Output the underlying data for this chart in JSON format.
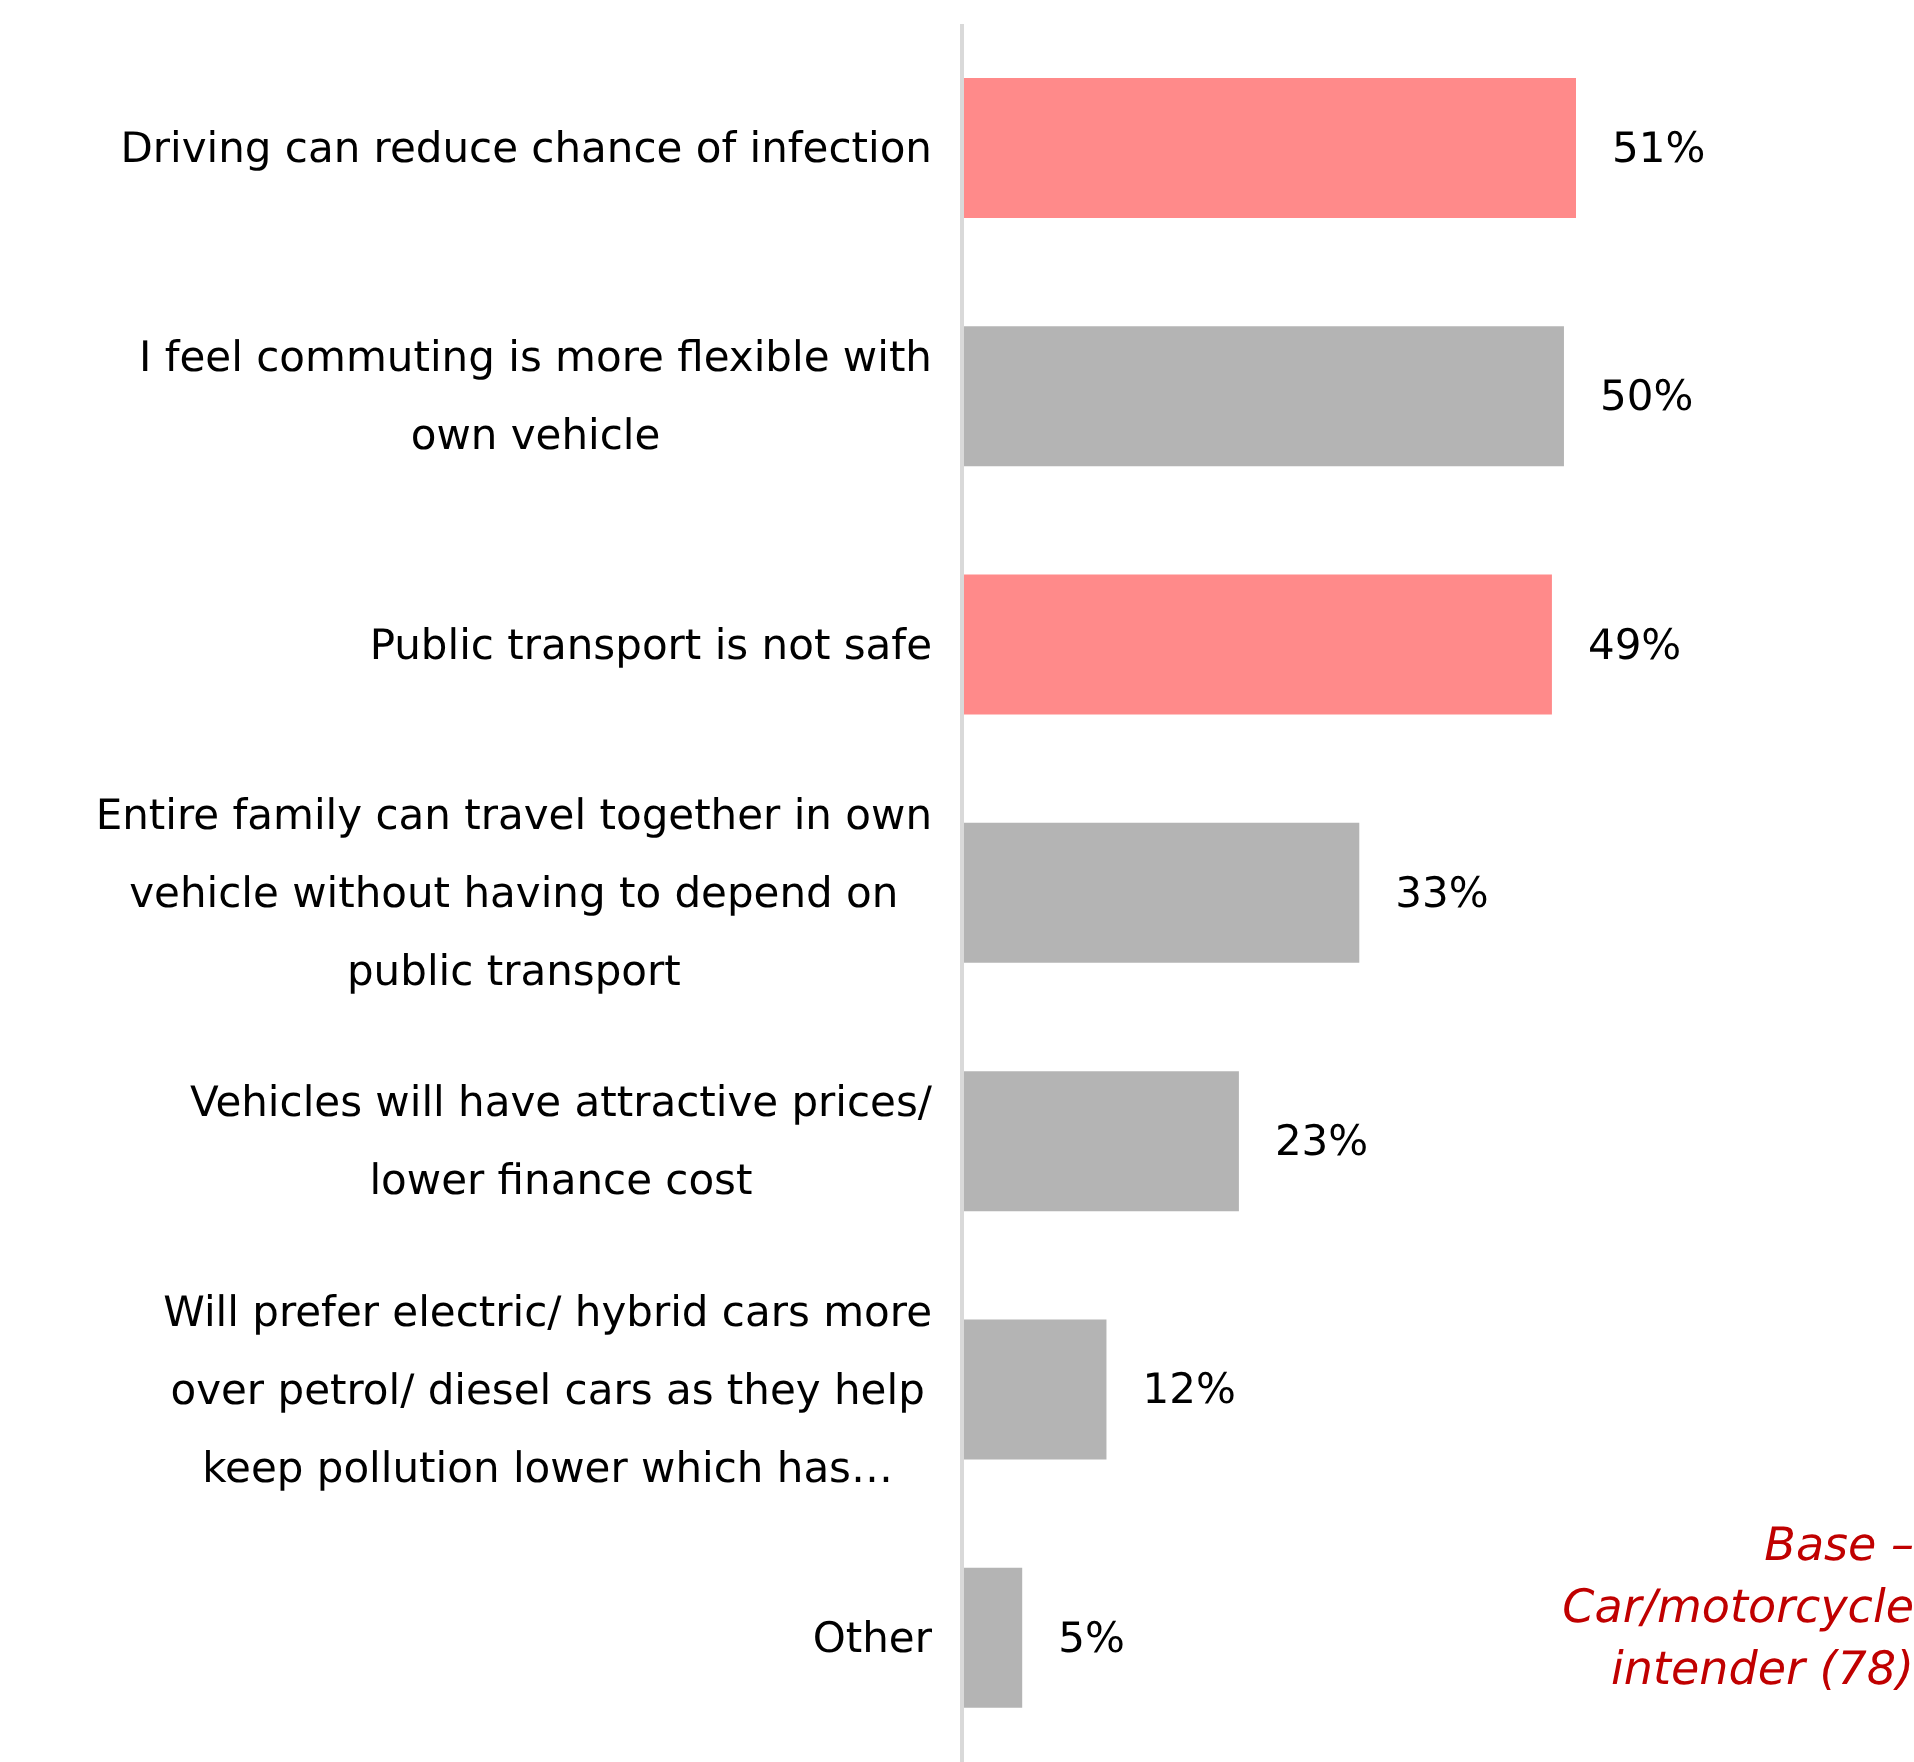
{
  "chart_data": {
    "type": "bar",
    "orientation": "horizontal",
    "categories": [
      "Driving can reduce chance of infection",
      "I feel commuting is more flexible with own vehicle",
      "Public transport is not safe",
      "Entire family can travel together in own vehicle without having to depend on public transport",
      "Vehicles will have attractive prices/ lower finance cost",
      "Will prefer electric/ hybrid cars more over petrol/ diesel cars as they help keep pollution lower which has…",
      "Other"
    ],
    "values": [
      51,
      50,
      49,
      33,
      23,
      12,
      5
    ],
    "value_labels": [
      "51%",
      "50%",
      "49%",
      "33%",
      "23%",
      "12%",
      "5%"
    ],
    "colors": [
      "#ff8a8a",
      "#b4b4b4",
      "#ff8a8a",
      "#b4b4b4",
      "#b4b4b4",
      "#b4b4b4",
      "#b4b4b4"
    ],
    "annotations": [
      "Base – Car/motorcycle intender (78)"
    ],
    "grid": false,
    "legend": false
  }
}
